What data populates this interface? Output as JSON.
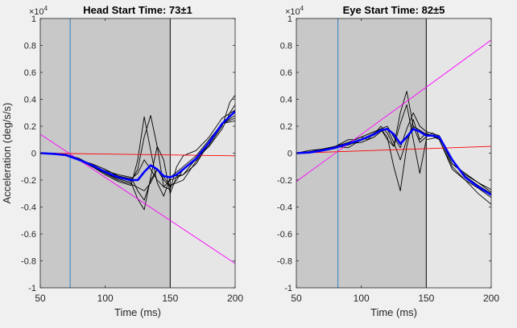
{
  "figure_background": "#f0f0f0",
  "chart_data": [
    {
      "type": "line",
      "title": "Head Start Time: 73±1",
      "xlabel": "Time (ms)",
      "ylabel": "Acceleration (deg/s/s)",
      "exponent_label": "×10",
      "exponent_power": "4",
      "xlim": [
        50,
        200
      ],
      "ylim": [
        -1,
        1
      ],
      "xticks": [
        50,
        100,
        150,
        200
      ],
      "yticks": [
        -1,
        -0.8,
        -0.6,
        -0.4,
        -0.2,
        0,
        0.2,
        0.4,
        0.6,
        0.8,
        1
      ],
      "ytick_labels": [
        "-1",
        "-0.8",
        "-0.6",
        "-0.4",
        "-0.2",
        "0",
        "0.2",
        "0.4",
        "0.6",
        "0.8",
        "1"
      ],
      "grid": false,
      "shaded_regions": [
        {
          "x": [
            50,
            150
          ],
          "color": "#c8c8c8"
        },
        {
          "x": [
            150,
            200
          ],
          "color": "#e6e6e6"
        }
      ],
      "vlines": [
        {
          "x": 73,
          "color": "#2f7fc1"
        },
        {
          "x": 150,
          "color": "#000000"
        }
      ],
      "series": [
        {
          "color": "#000000",
          "width": 0.9,
          "x": [
            50,
            60,
            70,
            80,
            90,
            100,
            110,
            120,
            125,
            130,
            135,
            140,
            145,
            150,
            160,
            170,
            180,
            190,
            196,
            200
          ],
          "y": [
            0,
            -0.005,
            -0.01,
            -0.04,
            -0.09,
            -0.14,
            -0.17,
            -0.19,
            -0.15,
            -0.05,
            -0.12,
            -0.2,
            -0.25,
            -0.2,
            -0.16,
            -0.04,
            0.05,
            0.18,
            0.3,
            0.36
          ]
        },
        {
          "color": "#000000",
          "width": 0.9,
          "x": [
            50,
            60,
            70,
            80,
            90,
            100,
            110,
            120,
            125,
            130,
            135,
            140,
            145,
            150,
            160,
            170,
            180,
            190,
            196,
            200
          ],
          "y": [
            0,
            -0.005,
            -0.02,
            -0.05,
            -0.1,
            -0.13,
            -0.16,
            -0.18,
            -0.28,
            -0.35,
            -0.2,
            -0.12,
            -0.18,
            -0.24,
            -0.2,
            -0.06,
            0.06,
            0.2,
            0.38,
            0.43
          ]
        },
        {
          "color": "#000000",
          "width": 0.9,
          "x": [
            50,
            60,
            70,
            80,
            90,
            100,
            110,
            120,
            125,
            130,
            135,
            140,
            145,
            150,
            155,
            160,
            170,
            180,
            190,
            200
          ],
          "y": [
            0,
            -0.005,
            -0.01,
            -0.05,
            -0.08,
            -0.12,
            -0.17,
            -0.21,
            -0.12,
            0.12,
            0.28,
            0.05,
            -0.25,
            -0.27,
            -0.1,
            -0.02,
            0.02,
            0.12,
            0.26,
            0.32
          ]
        },
        {
          "color": "#000000",
          "width": 0.9,
          "x": [
            50,
            60,
            70,
            80,
            90,
            100,
            110,
            120,
            125,
            130,
            135,
            140,
            145,
            150,
            155,
            160,
            170,
            180,
            190,
            200
          ],
          "y": [
            0,
            -0.005,
            -0.01,
            -0.04,
            -0.09,
            -0.15,
            -0.19,
            -0.22,
            -0.34,
            -0.42,
            -0.18,
            0.05,
            -0.05,
            -0.3,
            -0.17,
            -0.16,
            -0.08,
            0.08,
            0.22,
            0.28
          ]
        },
        {
          "color": "#000000",
          "width": 0.9,
          "x": [
            50,
            60,
            70,
            80,
            90,
            100,
            110,
            120,
            130,
            135,
            140,
            145,
            150,
            155,
            160,
            170,
            180,
            190,
            200
          ],
          "y": [
            0,
            0,
            -0.01,
            -0.05,
            -0.1,
            -0.15,
            -0.2,
            -0.23,
            -0.28,
            -0.22,
            -0.12,
            -0.2,
            -0.25,
            -0.2,
            -0.12,
            -0.05,
            0.08,
            0.22,
            0.26
          ]
        },
        {
          "color": "#000000",
          "width": 0.9,
          "x": [
            50,
            60,
            70,
            80,
            90,
            100,
            110,
            120,
            125,
            130,
            135,
            140,
            145,
            150,
            160,
            170,
            180,
            190,
            200
          ],
          "y": [
            0,
            -0.005,
            -0.01,
            -0.05,
            -0.1,
            -0.16,
            -0.21,
            -0.24,
            -0.05,
            0.27,
            0.02,
            -0.22,
            -0.32,
            -0.18,
            -0.1,
            -0.02,
            0.1,
            0.22,
            0.24
          ]
        },
        {
          "color": "#ff00ff",
          "width": 0.9,
          "x": [
            50,
            200
          ],
          "y": [
            0.14,
            -0.82
          ]
        },
        {
          "color": "#ff0000",
          "width": 0.9,
          "x": [
            50,
            200
          ],
          "y": [
            0.0,
            -0.02
          ]
        },
        {
          "color": "#0000ff",
          "width": 2.6,
          "x": [
            50,
            60,
            70,
            80,
            90,
            100,
            110,
            120,
            125,
            130,
            135,
            140,
            145,
            150,
            155,
            160,
            170,
            180,
            190,
            200
          ],
          "y": [
            0,
            -0.005,
            -0.015,
            -0.05,
            -0.09,
            -0.14,
            -0.18,
            -0.2,
            -0.2,
            -0.14,
            -0.09,
            -0.12,
            -0.17,
            -0.18,
            -0.16,
            -0.12,
            -0.04,
            0.08,
            0.22,
            0.31
          ]
        }
      ]
    },
    {
      "type": "line",
      "title": "Eye Start Time: 82±5",
      "xlabel": "Time (ms)",
      "ylabel": "",
      "exponent_label": "×10",
      "exponent_power": "4",
      "xlim": [
        50,
        200
      ],
      "ylim": [
        -1,
        1
      ],
      "xticks": [
        50,
        100,
        150,
        200
      ],
      "yticks": [
        -1,
        -0.8,
        -0.6,
        -0.4,
        -0.2,
        0,
        0.2,
        0.4,
        0.6,
        0.8,
        1
      ],
      "ytick_labels": [
        "-1",
        "-0.8",
        "-0.6",
        "-0.4",
        "-0.2",
        "0",
        "0.2",
        "0.4",
        "0.6",
        "0.8",
        "1"
      ],
      "grid": false,
      "shaded_regions": [
        {
          "x": [
            50,
            150
          ],
          "color": "#c8c8c8"
        },
        {
          "x": [
            150,
            200
          ],
          "color": "#e6e6e6"
        }
      ],
      "vlines": [
        {
          "x": 82,
          "color": "#2f7fc1"
        },
        {
          "x": 150,
          "color": "#000000"
        }
      ],
      "series": [
        {
          "color": "#000000",
          "width": 0.9,
          "x": [
            50,
            60,
            70,
            80,
            90,
            100,
            110,
            115,
            120,
            125,
            130,
            135,
            140,
            145,
            150,
            155,
            160,
            170,
            180,
            190,
            200
          ],
          "y": [
            0,
            0.01,
            0.02,
            0.04,
            0.06,
            0.1,
            0.14,
            0.2,
            0.15,
            0.05,
            0.3,
            0.46,
            0.2,
            0.08,
            0.12,
            0.15,
            0.1,
            -0.1,
            -0.2,
            -0.26,
            -0.33
          ]
        },
        {
          "color": "#000000",
          "width": 0.9,
          "x": [
            50,
            60,
            70,
            80,
            90,
            100,
            110,
            115,
            120,
            125,
            130,
            135,
            140,
            145,
            150,
            160,
            170,
            180,
            190,
            200
          ],
          "y": [
            0,
            0.01,
            0.03,
            0.05,
            0.04,
            0.1,
            0.15,
            0.18,
            0.12,
            -0.1,
            -0.28,
            0.05,
            0.25,
            0.1,
            0.15,
            0.1,
            -0.12,
            -0.2,
            -0.3,
            -0.38
          ]
        },
        {
          "color": "#000000",
          "width": 0.9,
          "x": [
            50,
            60,
            70,
            80,
            90,
            95,
            100,
            105,
            110,
            115,
            120,
            125,
            130,
            135,
            140,
            145,
            150,
            160,
            170,
            180,
            190,
            200
          ],
          "y": [
            0,
            0.02,
            0.03,
            0.05,
            0.1,
            0.1,
            0.12,
            0.1,
            0.15,
            0.18,
            0.1,
            0.05,
            0.22,
            0.36,
            0.1,
            -0.15,
            0.1,
            0.12,
            -0.08,
            -0.16,
            -0.22,
            -0.27
          ]
        },
        {
          "color": "#000000",
          "width": 0.9,
          "x": [
            50,
            60,
            70,
            80,
            90,
            100,
            110,
            115,
            120,
            125,
            130,
            135,
            140,
            150,
            160,
            170,
            180,
            190,
            200
          ],
          "y": [
            0,
            0.01,
            0.02,
            0.04,
            0.07,
            0.08,
            0.12,
            0.16,
            0.18,
            0.08,
            -0.05,
            0.1,
            0.2,
            0.14,
            0.12,
            -0.08,
            -0.15,
            -0.22,
            -0.29
          ]
        },
        {
          "color": "#000000",
          "width": 0.9,
          "x": [
            50,
            60,
            70,
            80,
            90,
            100,
            110,
            120,
            125,
            130,
            135,
            140,
            145,
            150,
            160,
            170,
            180,
            190,
            200
          ],
          "y": [
            0,
            0.01,
            0.02,
            0.05,
            0.08,
            0.12,
            0.16,
            0.2,
            0.12,
            0.04,
            0.18,
            0.3,
            0.2,
            0.16,
            0.13,
            -0.05,
            -0.17,
            -0.24,
            -0.3
          ]
        },
        {
          "color": "#ff00ff",
          "width": 0.9,
          "x": [
            50,
            200
          ],
          "y": [
            -0.21,
            0.84
          ]
        },
        {
          "color": "#ff0000",
          "width": 0.9,
          "x": [
            50,
            200
          ],
          "y": [
            0.0,
            0.05
          ]
        },
        {
          "color": "#0000ff",
          "width": 2.6,
          "x": [
            50,
            60,
            70,
            80,
            90,
            100,
            110,
            115,
            120,
            125,
            130,
            135,
            140,
            145,
            150,
            155,
            160,
            170,
            180,
            190,
            200
          ],
          "y": [
            0,
            0.005,
            0.02,
            0.04,
            0.07,
            0.1,
            0.14,
            0.17,
            0.18,
            0.14,
            0.07,
            0.12,
            0.18,
            0.16,
            0.13,
            0.13,
            0.12,
            -0.05,
            -0.18,
            -0.25,
            -0.31
          ]
        }
      ]
    }
  ]
}
